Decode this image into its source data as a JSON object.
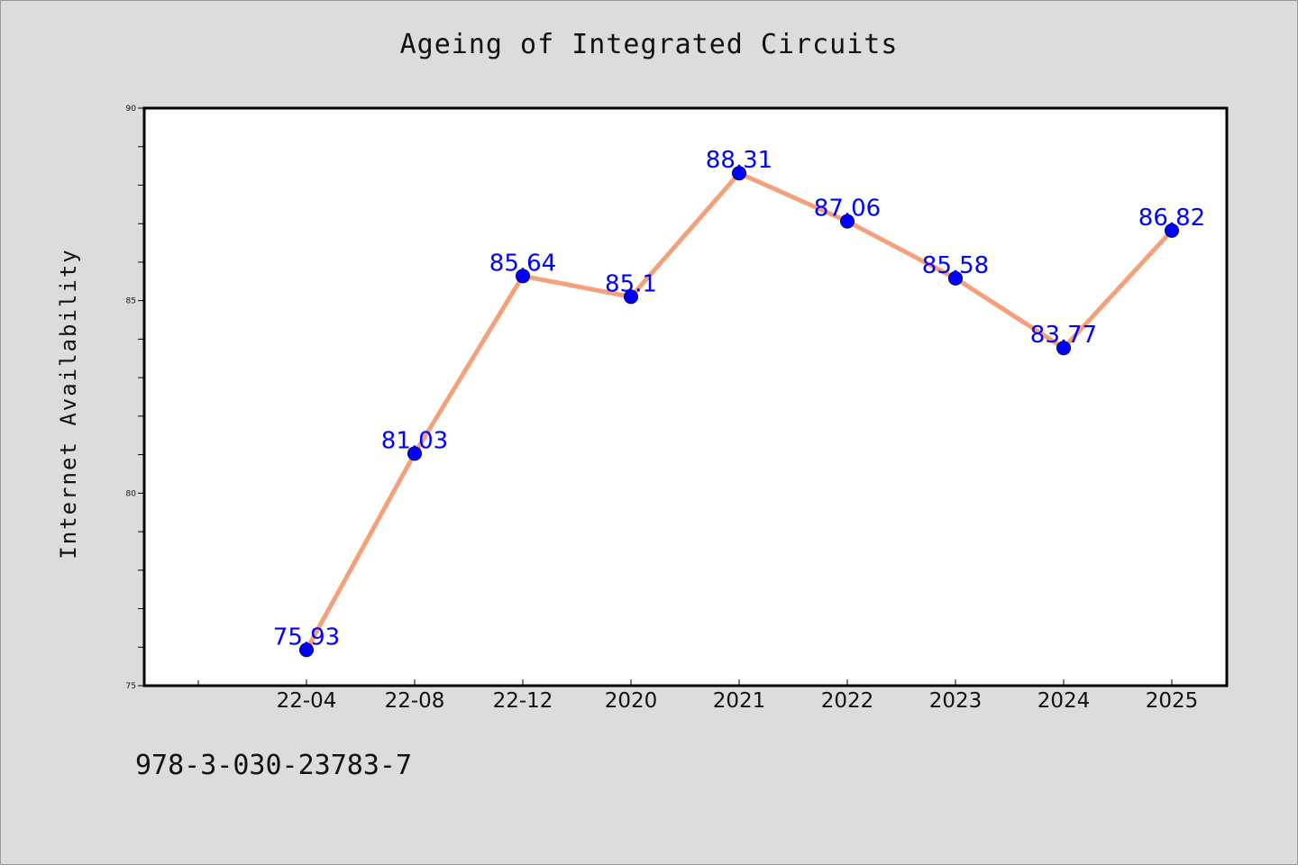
{
  "chart_data": {
    "type": "line",
    "title": "Ageing of Integrated Circuits",
    "xlabel": "",
    "ylabel": "Internet Availability",
    "categories": [
      "22-04",
      "22-08",
      "22-12",
      "2020",
      "2021",
      "2022",
      "2023",
      "2024",
      "2025"
    ],
    "series": [
      {
        "values": [
          75.93,
          81.03,
          85.64,
          85.1,
          88.31,
          87.06,
          85.58,
          83.77,
          86.82
        ],
        "labels": [
          "75.93",
          "81.03",
          "85.64",
          "85.1",
          "88.31",
          "87.06",
          "85.58",
          "83.77",
          "86.82"
        ]
      }
    ],
    "ylim": [
      75,
      90
    ],
    "yticks": [
      "75",
      "80",
      "85",
      "90"
    ],
    "grid": false,
    "legend": "none",
    "line_color": "#f4a07a",
    "marker_color": "#0000ff",
    "label_color": "#0000ff"
  },
  "annotation": {
    "isbn": "978-3-030-23783-7"
  }
}
